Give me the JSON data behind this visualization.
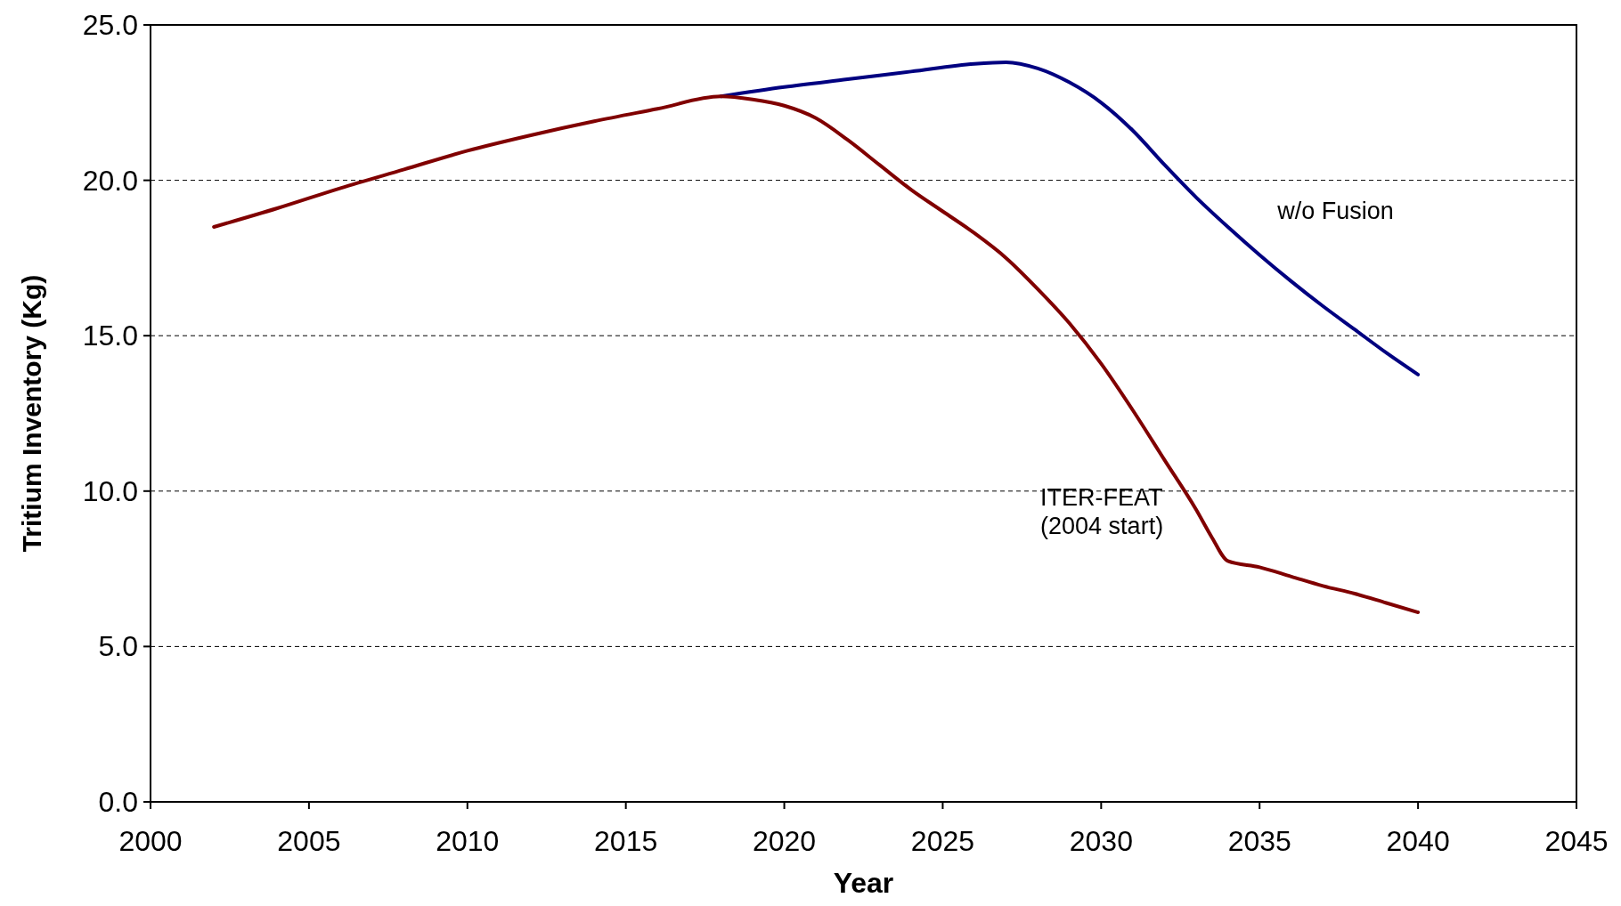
{
  "chart_data": {
    "type": "line",
    "xlabel": "Year",
    "ylabel": "Tritium Inventory (Kg)",
    "xlim": [
      2000,
      2045
    ],
    "xticks": [
      2000,
      2005,
      2010,
      2015,
      2020,
      2025,
      2030,
      2035,
      2040,
      2045
    ],
    "ylim": [
      0,
      25
    ],
    "yticks": [
      {
        "value": 0,
        "label": "0.0"
      },
      {
        "value": 5,
        "label": "5.0"
      },
      {
        "value": 10,
        "label": "10.0"
      },
      {
        "value": 15,
        "label": "15.0"
      },
      {
        "value": 20,
        "label": "20.0"
      },
      {
        "value": 25,
        "label": "25.0"
      }
    ],
    "grid": "y",
    "line_style": "solid",
    "marker": "none",
    "series": [
      {
        "name": "w/o Fusion",
        "color": "#000080",
        "x": [
          2018,
          2020,
          2022,
          2024,
          2026,
          2027,
          2028,
          2029,
          2030,
          2031,
          2032,
          2033,
          2034,
          2035,
          2036,
          2037,
          2038,
          2039,
          2040
        ],
        "values": [
          22.7,
          23.0,
          23.25,
          23.5,
          23.75,
          23.8,
          23.6,
          23.15,
          22.5,
          21.6,
          20.5,
          19.45,
          18.5,
          17.6,
          16.75,
          15.95,
          15.2,
          14.45,
          13.75
        ]
      },
      {
        "name": "ITER-FEAT\n(2004 start)",
        "color": "#800000",
        "x": [
          2002,
          2004,
          2006,
          2008,
          2010,
          2012,
          2014,
          2016,
          2018,
          2019,
          2020,
          2021,
          2022,
          2023,
          2024,
          2025,
          2026,
          2027,
          2028,
          2029,
          2030,
          2031,
          2032,
          2033,
          2033.5,
          2034,
          2035,
          2036,
          2037,
          2038,
          2039,
          2040
        ],
        "values": [
          18.5,
          19.1,
          19.75,
          20.35,
          20.95,
          21.45,
          21.9,
          22.3,
          22.7,
          22.6,
          22.4,
          22.0,
          21.3,
          20.5,
          19.7,
          19.0,
          18.3,
          17.5,
          16.5,
          15.4,
          14.1,
          12.6,
          11.0,
          9.4,
          8.5,
          7.75,
          7.55,
          7.25,
          6.95,
          6.7,
          6.4,
          6.1
        ]
      }
    ]
  }
}
